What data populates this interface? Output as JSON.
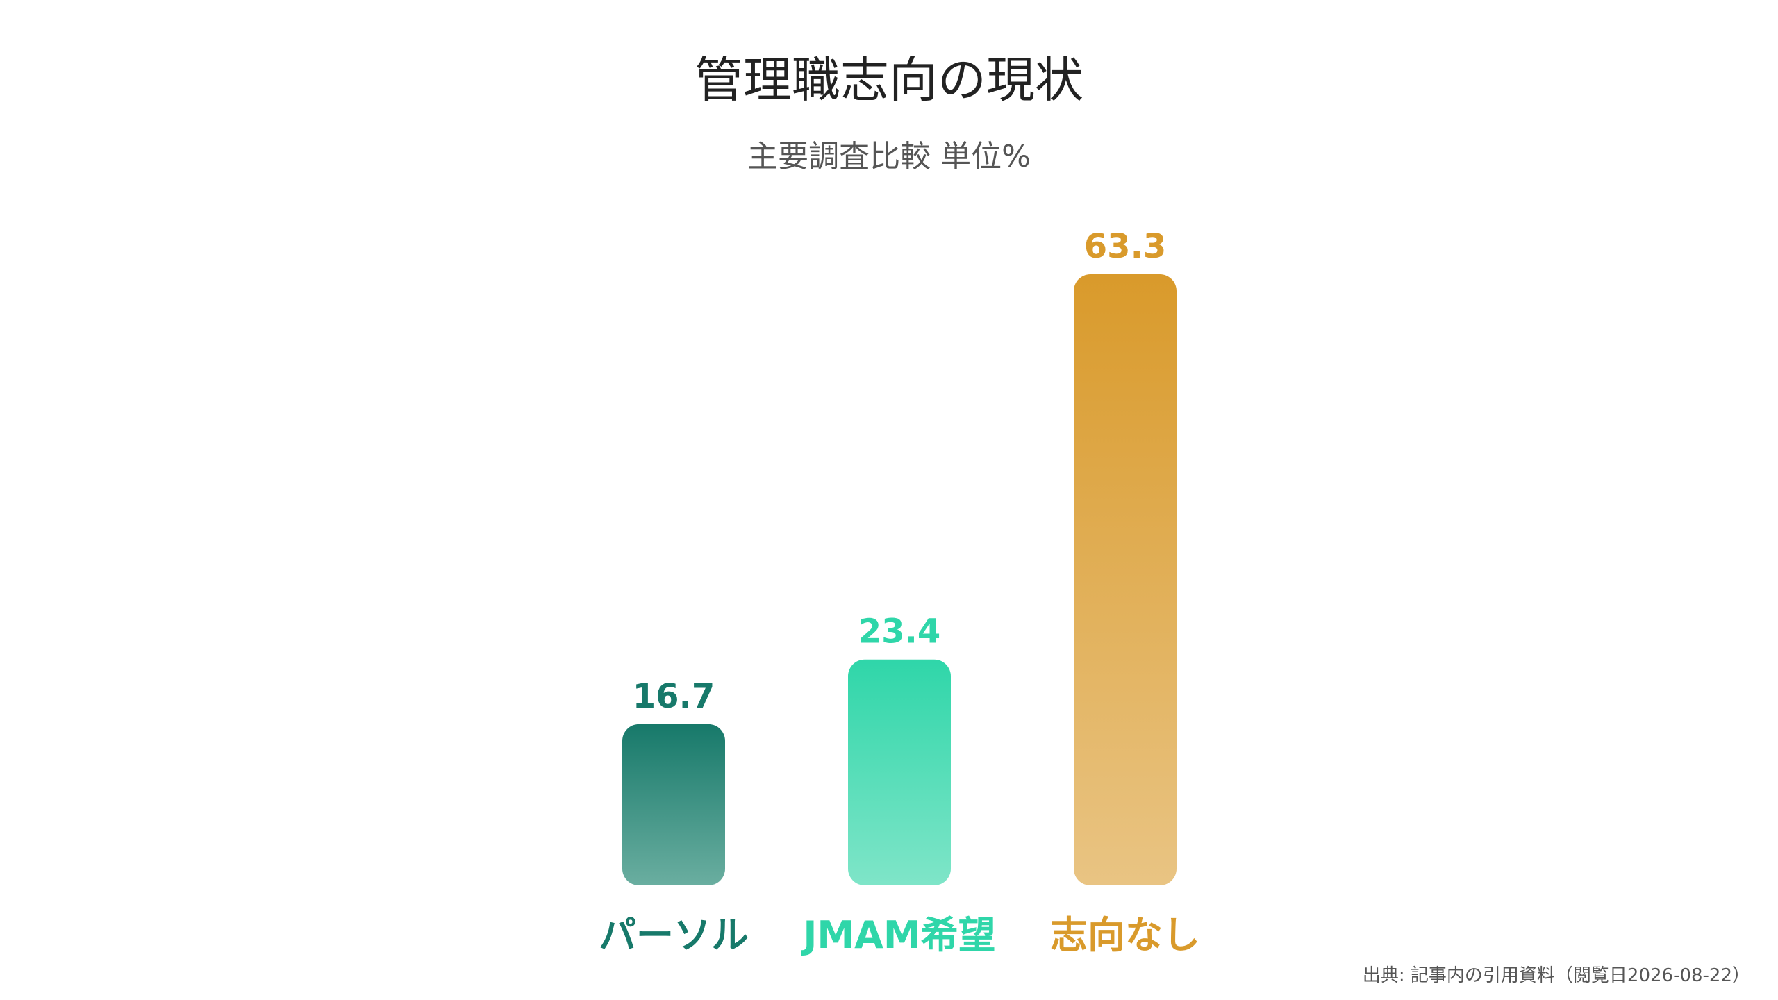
{
  "chart_data": {
    "type": "bar",
    "title": "管理職志向の現状",
    "subtitle": "主要調査比較 単位%",
    "categories": [
      "パーソル",
      "JMAM希望",
      "志向なし"
    ],
    "values": [
      16.7,
      23.4,
      63.3
    ],
    "value_labels": [
      "16.7",
      "23.4",
      "63.3"
    ],
    "ylim": [
      0,
      63.3
    ],
    "grid": false,
    "legend": "none",
    "colors": [
      {
        "top": "#17796a",
        "bottom": "#6aaea0",
        "text": "#17796a"
      },
      {
        "top": "#2fd6a9",
        "bottom": "#7fe5c8",
        "text": "#2fd6a9"
      },
      {
        "top": "#d99a2b",
        "bottom": "#e9c483",
        "text": "#d99a2b"
      }
    ]
  },
  "source": "出典: 記事内の引用資料（閲覧日2026-08-22）"
}
